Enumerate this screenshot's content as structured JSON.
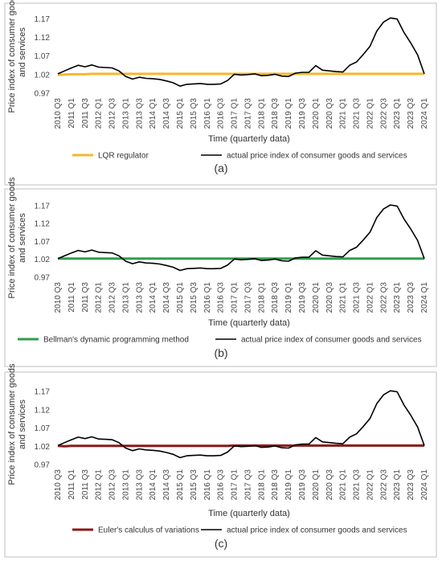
{
  "chart_data": [
    {
      "type": "line",
      "panel_label": "(a)",
      "xlabel": "Time (quarterly data)",
      "ylabel": "Price index of consumer goods and services",
      "yticks": [
        "1.17",
        "1.12",
        "1.07",
        "1.02",
        "0.97"
      ],
      "ylim": [
        0.97,
        1.19
      ],
      "x_tick_labels": [
        "2010 Q3",
        "2011 Q1",
        "2011 Q3",
        "2012 Q1",
        "2012 Q3",
        "2013 Q1",
        "2013 Q3",
        "2014 Q1",
        "2014 Q3",
        "2015 Q1",
        "2015 Q3",
        "2016 Q1",
        "2016 Q3",
        "2017 Q1",
        "2017 Q3",
        "2018 Q1",
        "2018 Q3",
        "2019 Q1",
        "2019 Q3",
        "2020 Q1",
        "2020 Q3",
        "2021 Q1",
        "2021 Q3",
        "2022 Q1",
        "2022 Q3",
        "2023 Q1",
        "2023 Q3",
        "2024 Q1"
      ],
      "series": [
        {
          "name": "LQR regulator",
          "color": "#F5B82E",
          "values": [
            1.019,
            1.02,
            1.021,
            1.021,
            1.021,
            1.022,
            1.022,
            1.022,
            1.022,
            1.022,
            1.022,
            1.022,
            1.022,
            1.022,
            1.022,
            1.022,
            1.022,
            1.022,
            1.022,
            1.022,
            1.022,
            1.022,
            1.022,
            1.022,
            1.022,
            1.022,
            1.022,
            1.022,
            1.022,
            1.022,
            1.022,
            1.022,
            1.022,
            1.022,
            1.022,
            1.022,
            1.022,
            1.022,
            1.022,
            1.022,
            1.022,
            1.022,
            1.022,
            1.022,
            1.022,
            1.022,
            1.022,
            1.022,
            1.022,
            1.022,
            1.022,
            1.022,
            1.022,
            1.022,
            1.022
          ]
        },
        {
          "name": "actual price index of consumer goods and services",
          "color": "#000000",
          "values": [
            1.022,
            1.03,
            1.038,
            1.045,
            1.041,
            1.046,
            1.04,
            1.039,
            1.038,
            1.03,
            1.015,
            1.008,
            1.013,
            1.01,
            1.009,
            1.007,
            1.003,
            0.998,
            0.989,
            0.994,
            0.995,
            0.996,
            0.994,
            0.994,
            0.995,
            1.004,
            1.021,
            1.019,
            1.02,
            1.022,
            1.017,
            1.018,
            1.021,
            1.016,
            1.015,
            1.024,
            1.026,
            1.026,
            1.044,
            1.032,
            1.03,
            1.028,
            1.027,
            1.045,
            1.054,
            1.074,
            1.096,
            1.137,
            1.161,
            1.172,
            1.169,
            1.133,
            1.105,
            1.073,
            1.022
          ]
        }
      ],
      "legend": [
        "LQR regulator",
        "actual price index of consumer goods and services"
      ]
    },
    {
      "type": "line",
      "panel_label": "(b)",
      "xlabel": "Time (quarterly data)",
      "ylabel": "Price index of consumer goods and services",
      "yticks": [
        "1.17",
        "1.12",
        "1.07",
        "1.02",
        "0.97"
      ],
      "ylim": [
        0.97,
        1.19
      ],
      "x_tick_labels": [
        "2010 Q3",
        "2011 Q1",
        "2011 Q3",
        "2012 Q1",
        "2012 Q3",
        "2013 Q1",
        "2013 Q3",
        "2014 Q1",
        "2014 Q3",
        "2015 Q1",
        "2015 Q3",
        "2016 Q1",
        "2016 Q3",
        "2017 Q1",
        "2017 Q3",
        "2018 Q1",
        "2018 Q3",
        "2019 Q1",
        "2019 Q3",
        "2020 Q1",
        "2020 Q3",
        "2021 Q1",
        "2021 Q3",
        "2022 Q1",
        "2022 Q3",
        "2023 Q1",
        "2023 Q3",
        "2024 Q1"
      ],
      "series": [
        {
          "name": "Bellman's dynamic programming method",
          "color": "#2E9E4F",
          "values": [
            1.022,
            1.022,
            1.022,
            1.022,
            1.022,
            1.022,
            1.022,
            1.022,
            1.022,
            1.022,
            1.022,
            1.022,
            1.022,
            1.022,
            1.022,
            1.022,
            1.022,
            1.022,
            1.022,
            1.022,
            1.022,
            1.022,
            1.022,
            1.022,
            1.022,
            1.022,
            1.022,
            1.022,
            1.022,
            1.022,
            1.022,
            1.022,
            1.022,
            1.022,
            1.022,
            1.022,
            1.022,
            1.022,
            1.022,
            1.022,
            1.022,
            1.022,
            1.022,
            1.022,
            1.022,
            1.022,
            1.022,
            1.022,
            1.022,
            1.022,
            1.022,
            1.022,
            1.022,
            1.022,
            1.022
          ]
        },
        {
          "name": "actual price index of consumer goods and services",
          "color": "#000000",
          "values": [
            1.022,
            1.03,
            1.038,
            1.045,
            1.041,
            1.046,
            1.04,
            1.039,
            1.038,
            1.03,
            1.015,
            1.008,
            1.013,
            1.01,
            1.009,
            1.007,
            1.003,
            0.998,
            0.989,
            0.994,
            0.995,
            0.996,
            0.994,
            0.994,
            0.995,
            1.004,
            1.021,
            1.019,
            1.02,
            1.022,
            1.017,
            1.018,
            1.021,
            1.016,
            1.015,
            1.024,
            1.026,
            1.026,
            1.044,
            1.032,
            1.03,
            1.028,
            1.027,
            1.045,
            1.054,
            1.074,
            1.096,
            1.137,
            1.161,
            1.172,
            1.169,
            1.133,
            1.105,
            1.073,
            1.022
          ]
        }
      ],
      "legend": [
        "Bellman's dynamic programming method",
        "actual price index of consumer goods and services"
      ]
    },
    {
      "type": "line",
      "panel_label": "(c)",
      "xlabel": "Time (quarterly data)",
      "ylabel": "Price index of consumer goods and services",
      "yticks": [
        "1.17",
        "1.12",
        "1.07",
        "1.02",
        "0.97"
      ],
      "ylim": [
        0.97,
        1.19
      ],
      "x_tick_labels": [
        "2010 Q3",
        "2011 Q1",
        "2011 Q3",
        "2012 Q1",
        "2012 Q3",
        "2013 Q1",
        "2013 Q3",
        "2014 Q1",
        "2014 Q3",
        "2015 Q1",
        "2015 Q3",
        "2016 Q1",
        "2016 Q3",
        "2017 Q1",
        "2017 Q3",
        "2018 Q1",
        "2018 Q3",
        "2019 Q1",
        "2019 Q3",
        "2020 Q1",
        "2020 Q3",
        "2021 Q1",
        "2021 Q3",
        "2022 Q1",
        "2022 Q3",
        "2023 Q1",
        "2023 Q3",
        "2024 Q1"
      ],
      "series": [
        {
          "name": "Euler's calculus of variations",
          "color": "#8B1A1A",
          "values": [
            1.021,
            1.02,
            1.021,
            1.021,
            1.021,
            1.021,
            1.021,
            1.021,
            1.021,
            1.021,
            1.021,
            1.021,
            1.021,
            1.021,
            1.021,
            1.021,
            1.021,
            1.021,
            1.021,
            1.021,
            1.021,
            1.021,
            1.021,
            1.021,
            1.021,
            1.021,
            1.022,
            1.022,
            1.022,
            1.022,
            1.022,
            1.022,
            1.022,
            1.022,
            1.022,
            1.022,
            1.022,
            1.022,
            1.022,
            1.022,
            1.022,
            1.022,
            1.022,
            1.022,
            1.022,
            1.022,
            1.022,
            1.022,
            1.022,
            1.022,
            1.022,
            1.022,
            1.022,
            1.022,
            1.022
          ]
        },
        {
          "name": "actual price index of consumer goods and services",
          "color": "#000000",
          "values": [
            1.022,
            1.03,
            1.038,
            1.045,
            1.041,
            1.046,
            1.04,
            1.039,
            1.038,
            1.03,
            1.015,
            1.008,
            1.013,
            1.01,
            1.009,
            1.007,
            1.003,
            0.998,
            0.989,
            0.994,
            0.995,
            0.996,
            0.994,
            0.994,
            0.995,
            1.004,
            1.021,
            1.019,
            1.02,
            1.022,
            1.017,
            1.018,
            1.021,
            1.016,
            1.015,
            1.024,
            1.026,
            1.026,
            1.044,
            1.032,
            1.03,
            1.028,
            1.027,
            1.045,
            1.054,
            1.074,
            1.096,
            1.137,
            1.161,
            1.172,
            1.169,
            1.133,
            1.105,
            1.073,
            1.022
          ]
        }
      ],
      "legend": [
        "Euler's calculus of variations",
        "actual price index of consumer goods and services"
      ]
    }
  ]
}
